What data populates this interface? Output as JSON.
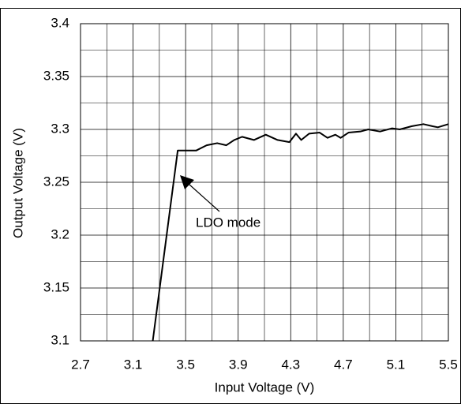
{
  "chart_data": {
    "type": "line",
    "xlabel": "Input Voltage (V)",
    "ylabel": "Output Voltage (V)",
    "annotation": "LDO mode",
    "xlim": [
      2.7,
      5.5
    ],
    "xticks": [
      2.7,
      3.1,
      3.5,
      3.9,
      4.3,
      4.7,
      5.1,
      5.5
    ],
    "ylim": [
      3.1,
      3.4
    ],
    "yticks": [
      3.1,
      3.15,
      3.2,
      3.25,
      3.3,
      3.35,
      3.4
    ],
    "x_minor_ticks": [
      2.9,
      3.3,
      3.7,
      4.1,
      4.5,
      4.9,
      5.3
    ],
    "y_minor_ticks": [
      3.125,
      3.175,
      3.225,
      3.275,
      3.325,
      3.375
    ],
    "grid": true,
    "series": [
      {
        "color": "#000000",
        "x": [
          3.25,
          3.44,
          3.58,
          3.66,
          3.74,
          3.81,
          3.87,
          3.93,
          4.02,
          4.11,
          4.2,
          4.29,
          4.34,
          4.38,
          4.44,
          4.52,
          4.58,
          4.64,
          4.68,
          4.74,
          4.83,
          4.89,
          4.98,
          5.07,
          5.13,
          5.22,
          5.31,
          5.38,
          5.42,
          5.5
        ],
        "values": [
          3.1,
          3.28,
          3.28,
          3.285,
          3.287,
          3.285,
          3.29,
          3.293,
          3.29,
          3.295,
          3.29,
          3.288,
          3.296,
          3.29,
          3.296,
          3.297,
          3.292,
          3.295,
          3.292,
          3.297,
          3.298,
          3.3,
          3.298,
          3.301,
          3.3,
          3.303,
          3.305,
          3.303,
          3.302,
          3.305
        ]
      }
    ]
  }
}
